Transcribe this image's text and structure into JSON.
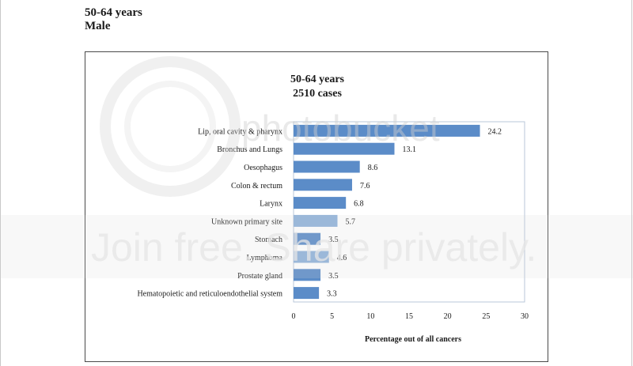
{
  "page": {
    "heading_line1": "50-64 years",
    "heading_line2": "Male"
  },
  "watermark": {
    "line1": "photobucket",
    "line2": "Join free. Share privately."
  },
  "colors": {
    "bar_dark": "#5b8cc8",
    "bar_light": "#8fb2da",
    "axis": "#555555",
    "text": "#1a1a1a"
  },
  "chart_data": {
    "type": "bar",
    "orientation": "horizontal",
    "title": [
      "50-64 years",
      "2510  cases"
    ],
    "xlabel": "Percentage out of all cancers",
    "xlim": [
      0,
      30
    ],
    "xticks": [
      0,
      5,
      10,
      15,
      20,
      25,
      30
    ],
    "grid": false,
    "categories": [
      "Lip, oral  cavity & pharynx",
      "Bronchus and Lungs",
      "Oesophagus",
      "Colon & rectum",
      "Larynx",
      "Unknown primary site",
      "Stomach",
      "Lymphoma",
      "Prostate gland",
      "Hematopoietic and reticuloendothelial system"
    ],
    "values": [
      24.2,
      13.1,
      8.6,
      7.6,
      6.8,
      5.7,
      3.5,
      4.6,
      3.5,
      3.3
    ],
    "value_labels": [
      "24.2",
      "13.1",
      "8.6",
      "7.6",
      "6.8",
      "5.7",
      "3.5",
      "4.6",
      "3.5",
      "3.3"
    ]
  }
}
